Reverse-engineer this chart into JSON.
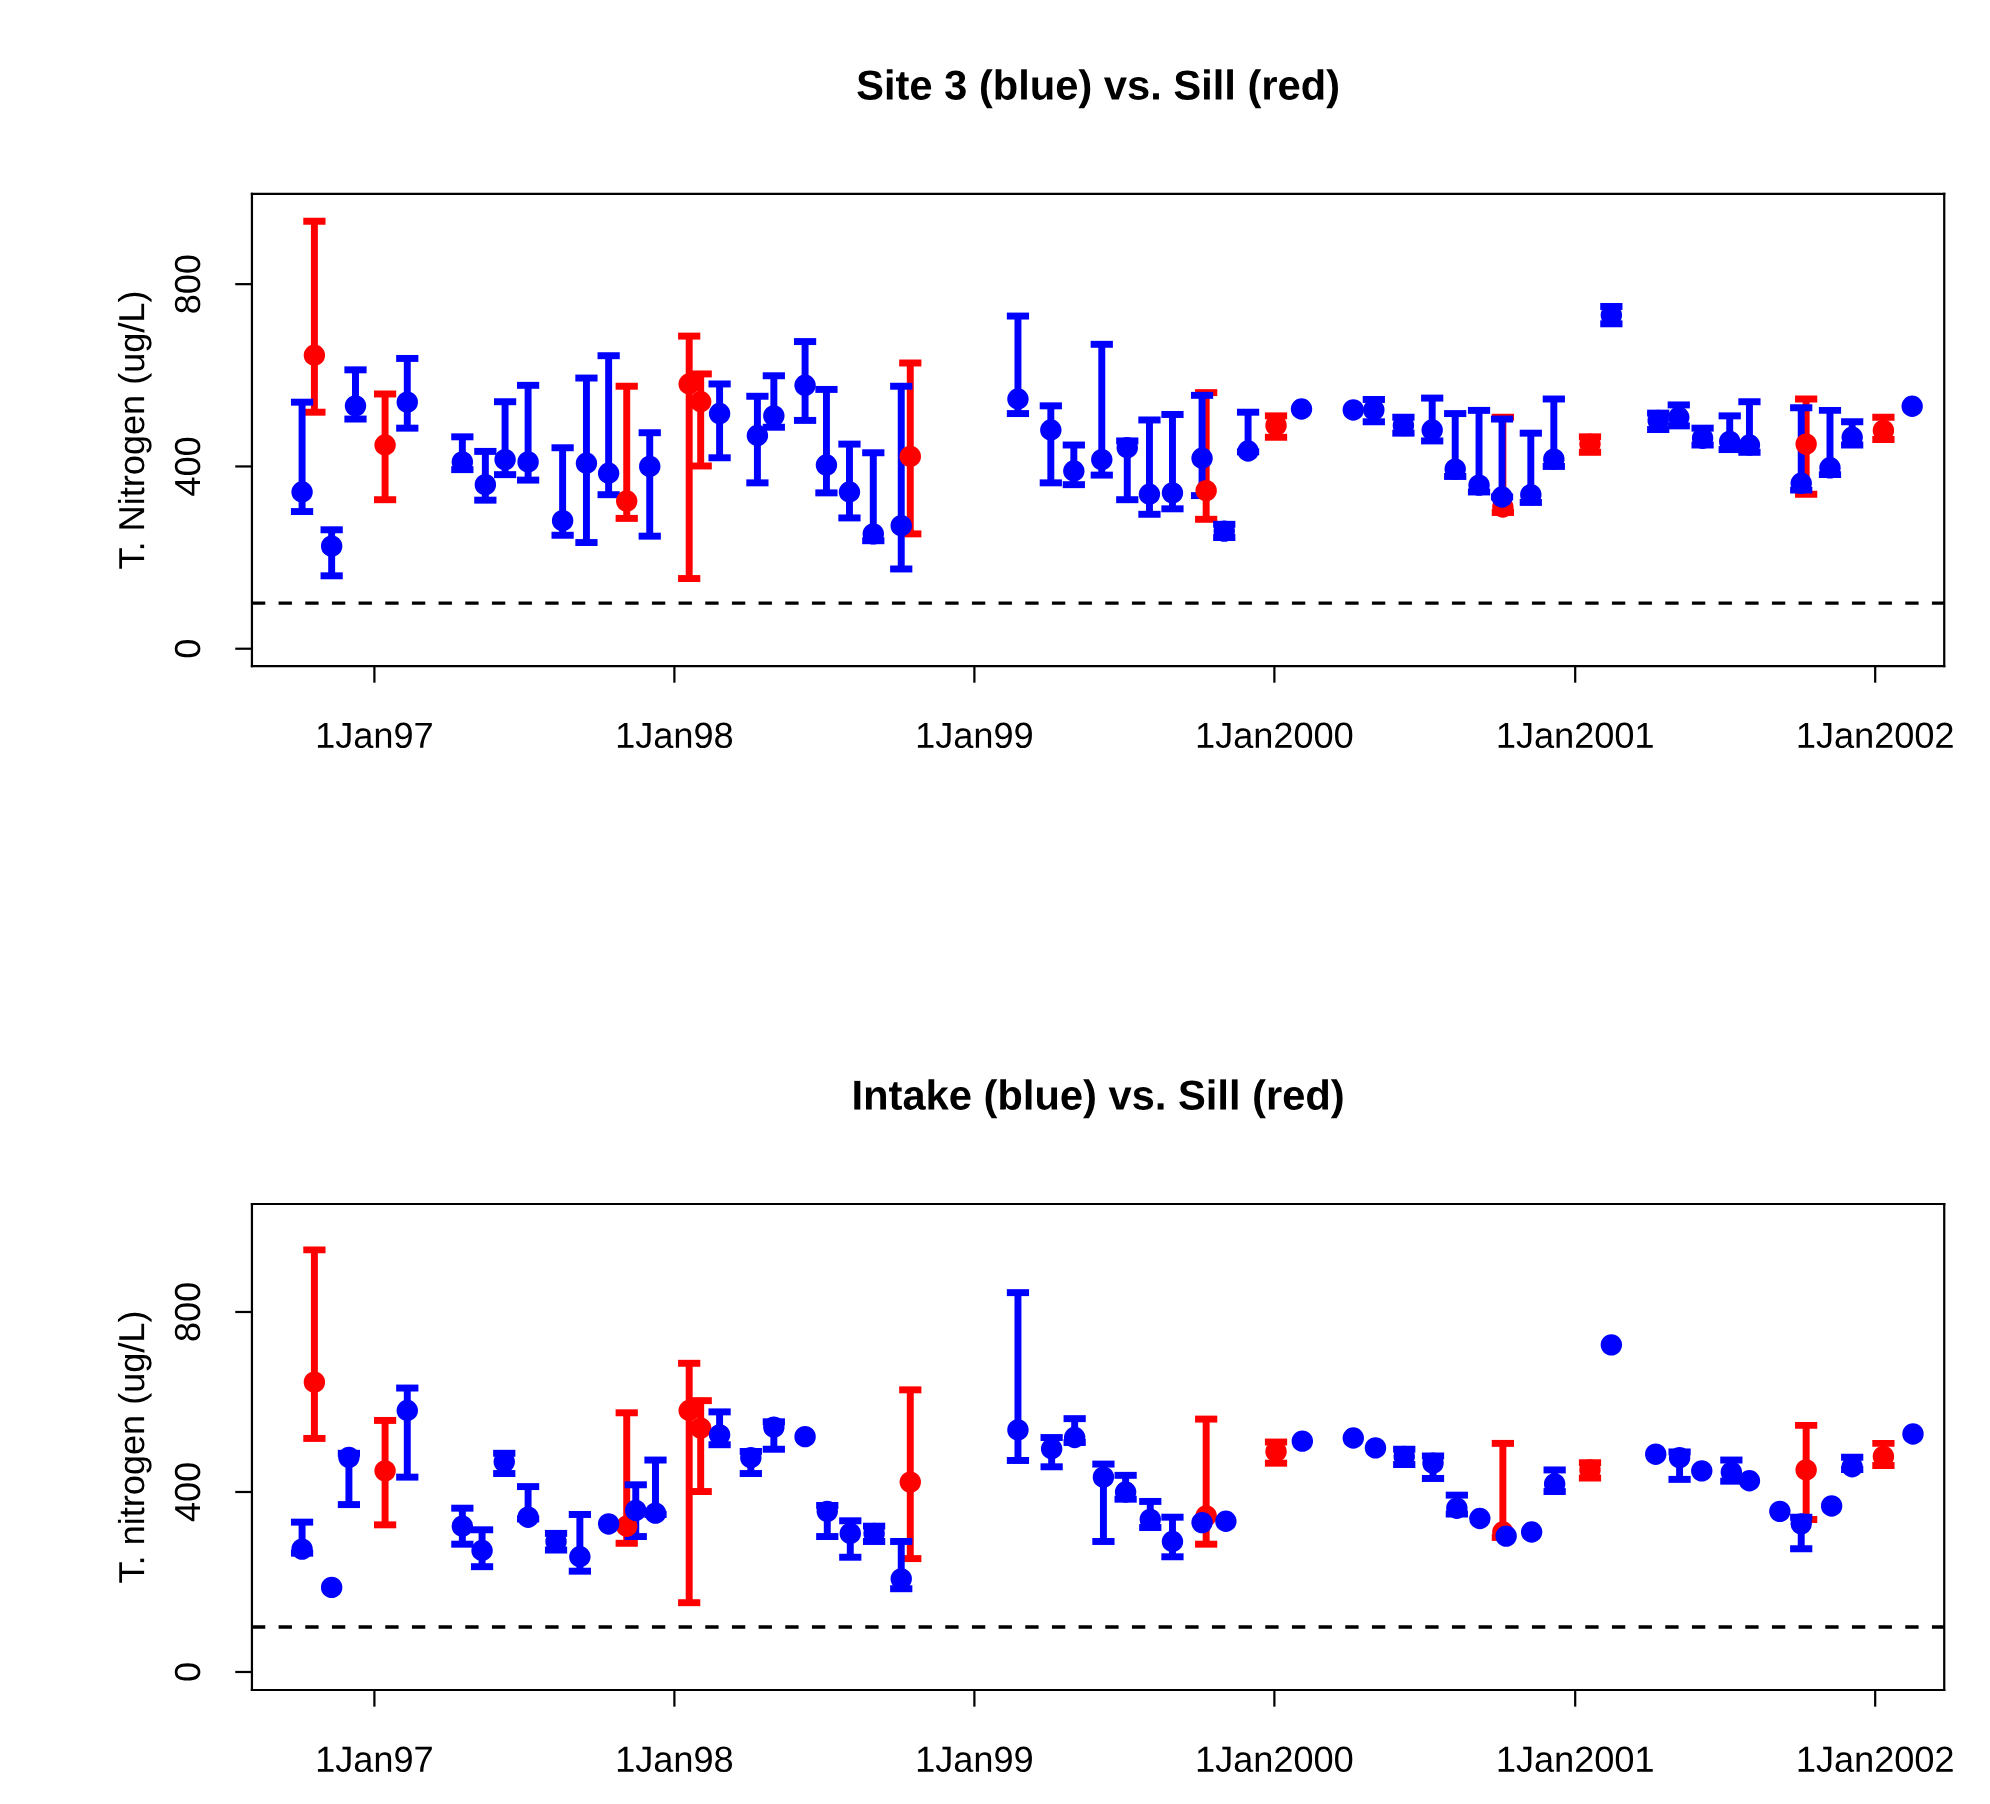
{
  "chart_data": [
    {
      "type": "scatter",
      "title": "Site 3 (blue) vs. Sill (red)",
      "ylabel": "T. Nitrogen (ug/L)",
      "xlim": [
        "1996-08-05",
        "2002-03-26"
      ],
      "ylim": [
        -38,
        998
      ],
      "yticks": [
        0,
        400,
        800
      ],
      "xticks": [
        {
          "value": "1997-01-01",
          "label": "1Jan97"
        },
        {
          "value": "1998-01-01",
          "label": "1Jan98"
        },
        {
          "value": "1999-01-01",
          "label": "1Jan99"
        },
        {
          "value": "2000-01-01",
          "label": "1Jan2000"
        },
        {
          "value": "2001-01-01",
          "label": "1Jan2001"
        },
        {
          "value": "2002-01-01",
          "label": "1Jan2002"
        }
      ],
      "grid": false,
      "legend": false,
      "marker": "circle",
      "ref_lines": [
        {
          "axis": "y",
          "value": 100,
          "color": "#000000",
          "line_style": "dashed"
        }
      ],
      "series": [
        {
          "color": "#0000ff",
          "x": [
            "1996-10-05",
            "1996-11-10",
            "1996-12-09",
            "1997-02-10",
            "1997-04-18",
            "1997-05-16",
            "1997-06-09",
            "1997-07-07",
            "1997-08-18",
            "1997-09-16",
            "1997-10-13",
            "1997-12-02",
            "1998-02-25",
            "1998-04-12",
            "1998-05-02",
            "1998-06-09",
            "1998-07-05",
            "1998-08-02",
            "1998-08-31",
            "1998-10-04",
            "1999-02-23",
            "1999-04-04",
            "1999-05-02",
            "1999-06-05",
            "1999-07-06",
            "1999-08-02",
            "1999-08-30",
            "1999-10-05",
            "1999-11-01",
            "1999-11-30",
            "2000-02-03",
            "2000-04-06",
            "2000-05-01",
            "2000-06-06",
            "2000-07-11",
            "2000-08-08",
            "2000-09-06",
            "2000-10-04",
            "2000-11-08",
            "2000-12-06",
            "2001-02-14",
            "2001-04-12",
            "2001-05-07",
            "2001-06-05",
            "2001-07-08",
            "2001-08-01",
            "2001-10-03",
            "2001-11-07",
            "2001-12-04",
            "2002-02-15"
          ],
          "values": [
            344,
            225,
            533,
            541,
            410,
            360,
            415,
            410,
            281,
            407,
            385,
            400,
            516,
            468,
            511,
            578,
            403,
            344,
            252,
            270,
            548,
            480,
            390,
            415,
            441,
            339,
            342,
            418,
            258,
            434,
            526,
            524,
            524,
            490,
            480,
            394,
            359,
            333,
            338,
            416,
            732,
            501,
            508,
            462,
            455,
            447,
            363,
            397,
            464,
            532
          ],
          "errors": [
            [
              301,
              541
            ],
            [
              160,
              261
            ],
            [
              504,
              612
            ],
            [
              484,
              637
            ],
            [
              393,
              465
            ],
            [
              326,
              433
            ],
            [
              382,
              542
            ],
            [
              370,
              578
            ],
            [
              249,
              441
            ],
            [
              233,
              594
            ],
            [
              338,
              643
            ],
            [
              247,
              474
            ],
            [
              419,
              581
            ],
            [
              364,
              554
            ],
            [
              486,
              599
            ],
            [
              501,
              674
            ],
            [
              342,
              569
            ],
            [
              287,
              449
            ],
            [
              237,
              430
            ],
            [
              175,
              576
            ],
            [
              516,
              730
            ],
            [
              364,
              533
            ],
            [
              360,
              447
            ],
            [
              381,
              668
            ],
            [
              327,
              456
            ],
            [
              295,
              502
            ],
            [
              307,
              514
            ],
            [
              336,
              556
            ],
            [
              244,
              273
            ],
            [
              432,
              519
            ],
            null,
            null,
            [
              498,
              547
            ],
            [
              473,
              508
            ],
            [
              456,
              550
            ],
            [
              378,
              516
            ],
            [
              344,
              523
            ],
            [
              333,
              504
            ],
            [
              321,
              473
            ],
            [
              400,
              548
            ],
            [
              713,
              751
            ],
            [
              481,
              517
            ],
            [
              489,
              535
            ],
            [
              447,
              484
            ],
            [
              437,
              511
            ],
            [
              431,
              542
            ],
            [
              348,
              529
            ],
            [
              382,
              523
            ],
            [
              447,
              498
            ],
            null
          ]
        },
        {
          "color": "#ff0000",
          "x": [
            "1996-10-20",
            "1997-01-14",
            "1997-11-04",
            "1998-01-19",
            "1998-02-02",
            "1998-10-15",
            "1999-10-10",
            "2000-01-03",
            "2000-10-05",
            "2001-01-19",
            "2001-10-09",
            "2002-01-11"
          ],
          "values": [
            644,
            447,
            324,
            581,
            542,
            422,
            347,
            490,
            311,
            449,
            449,
            479
          ],
          "errors": [
            [
              519,
              938
            ],
            [
              327,
              559
            ],
            [
              286,
              576
            ],
            [
              154,
              686
            ],
            [
              401,
              603
            ],
            [
              252,
              627
            ],
            [
              284,
              562
            ],
            [
              464,
              511
            ],
            [
              299,
              508
            ],
            [
              431,
              465
            ],
            [
              339,
              548
            ],
            [
              459,
              508
            ]
          ]
        }
      ]
    },
    {
      "type": "scatter",
      "title": "Intake (blue) vs. Sill (red)",
      "ylabel": "T. nitrogen (ug/L)",
      "xlim": [
        "1996-08-05",
        "2002-03-26"
      ],
      "ylim": [
        -40,
        1040
      ],
      "yticks": [
        0,
        400,
        800
      ],
      "xticks": [
        {
          "value": "1997-01-01",
          "label": "1Jan97"
        },
        {
          "value": "1998-01-01",
          "label": "1Jan98"
        },
        {
          "value": "1999-01-01",
          "label": "1Jan99"
        },
        {
          "value": "2000-01-01",
          "label": "1Jan2000"
        },
        {
          "value": "2001-01-01",
          "label": "1Jan2001"
        },
        {
          "value": "2002-01-01",
          "label": "1Jan2002"
        }
      ],
      "grid": false,
      "legend": false,
      "marker": "circle",
      "ref_lines": [
        {
          "axis": "y",
          "value": 100,
          "color": "#000000",
          "line_style": "dashed"
        }
      ],
      "series": [
        {
          "color": "#0000ff",
          "x": [
            "1996-10-05",
            "1996-11-10",
            "1996-12-01",
            "1997-02-10",
            "1997-04-18",
            "1997-05-12",
            "1997-06-08",
            "1997-07-07",
            "1997-08-10",
            "1997-09-08",
            "1997-10-13",
            "1997-11-15",
            "1997-12-09",
            "1998-02-25",
            "1998-04-04",
            "1998-05-02",
            "1998-06-09",
            "1998-07-06",
            "1998-08-03",
            "1998-09-01",
            "1998-10-04",
            "1999-02-23",
            "1999-04-05",
            "1999-05-03",
            "1999-06-07",
            "1999-07-04",
            "1999-08-03",
            "1999-08-30",
            "1999-10-05",
            "1999-11-03",
            "2000-02-04",
            "2000-04-06",
            "2000-05-03",
            "2000-06-07",
            "2000-07-12",
            "2000-08-10",
            "2000-09-07",
            "2000-10-09",
            "2000-11-09",
            "2000-12-07",
            "2001-02-14",
            "2001-04-09",
            "2001-05-08",
            "2001-06-04",
            "2001-07-10",
            "2001-08-01",
            "2001-09-07",
            "2001-10-03",
            "2001-11-09",
            "2001-12-04",
            "2002-02-16"
          ],
          "values": [
            273,
            188,
            477,
            581,
            324,
            270,
            467,
            344,
            290,
            256,
            329,
            359,
            353,
            527,
            476,
            544,
            523,
            357,
            308,
            308,
            207,
            538,
            496,
            521,
            433,
            400,
            339,
            290,
            332,
            335,
            513,
            520,
            498,
            479,
            464,
            364,
            341,
            302,
            311,
            418,
            727,
            484,
            476,
            447,
            444,
            425,
            357,
            329,
            369,
            456,
            529
          ],
          "errors": [
            [
              264,
              333
            ],
            null,
            [
              372,
              486
            ],
            [
              433,
              631
            ],
            [
              284,
              364
            ],
            [
              234,
              316
            ],
            [
              441,
              486
            ],
            [
              340,
              412
            ],
            [
              271,
              308
            ],
            [
              224,
              350
            ],
            null,
            [
              301,
              416
            ],
            [
              350,
              471
            ],
            [
              505,
              578
            ],
            [
              441,
              490
            ],
            [
              495,
              556
            ],
            null,
            [
              301,
              370
            ],
            [
              255,
              336
            ],
            [
              290,
              324
            ],
            [
              185,
              290
            ],
            [
              470,
              843
            ],
            [
              456,
              521
            ],
            [
              510,
              563
            ],
            [
              290,
              462
            ],
            [
              384,
              437
            ],
            [
              321,
              379
            ],
            [
              256,
              344
            ],
            null,
            null,
            null,
            null,
            null,
            [
              461,
              495
            ],
            [
              430,
              480
            ],
            [
              351,
              393
            ],
            null,
            null,
            null,
            [
              401,
              449
            ],
            null,
            null,
            [
              428,
              489
            ],
            null,
            [
              424,
              471
            ],
            null,
            null,
            [
              274,
              344
            ],
            null,
            [
              450,
              477
            ],
            null
          ]
        },
        {
          "color": "#ff0000",
          "x": [
            "1996-10-20",
            "1997-01-14",
            "1997-11-04",
            "1998-01-19",
            "1998-02-02",
            "1998-10-15",
            "1999-10-10",
            "2000-01-03",
            "2000-10-05",
            "2001-01-19",
            "2001-10-09",
            "2002-01-11"
          ],
          "values": [
            644,
            447,
            324,
            581,
            542,
            422,
            347,
            490,
            311,
            449,
            449,
            479
          ],
          "errors": [
            [
              519,
              938
            ],
            [
              327,
              559
            ],
            [
              286,
              576
            ],
            [
              154,
              686
            ],
            [
              401,
              603
            ],
            [
              252,
              627
            ],
            [
              284,
              562
            ],
            [
              464,
              511
            ],
            [
              299,
              508
            ],
            [
              431,
              465
            ],
            [
              339,
              548
            ],
            [
              459,
              508
            ]
          ]
        }
      ]
    }
  ]
}
